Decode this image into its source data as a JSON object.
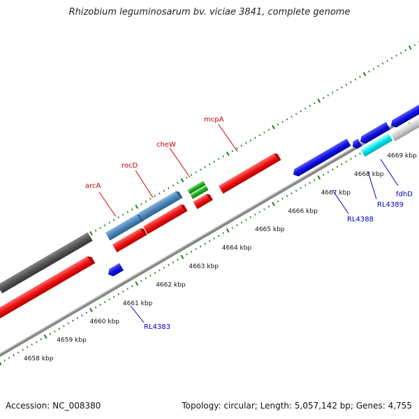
{
  "header": {
    "title": "Rhizobium leguminosarum bv. viciae 3841, complete genome"
  },
  "footer": {
    "accession": "Accession: NC_008380",
    "stats": "Topology: circular; Length: 5,057,142 bp; Genes: 4,755"
  },
  "colors": {
    "forward_cds": "#ee1111",
    "reverse_cds": "#1111dd",
    "blue_gene": "#4a86bb",
    "green_gene": "#22aa22",
    "cyan_gene": "#00e5f0",
    "dark_gene": "#555555",
    "light_gene": "#cccccc",
    "forward_label": "#cc0000",
    "reverse_label": "#0000bb",
    "tick": "#1a7a1a"
  },
  "scale": {
    "ticks": [
      {
        "kbp": 4658,
        "label": "4658 kbp"
      },
      {
        "kbp": 4659,
        "label": "4659 kbp"
      },
      {
        "kbp": 4660,
        "label": "4660 kbp"
      },
      {
        "kbp": 4661,
        "label": "4661 kbp"
      },
      {
        "kbp": 4662,
        "label": "4662 kbp"
      },
      {
        "kbp": 4663,
        "label": "4663 kbp"
      },
      {
        "kbp": 4664,
        "label": "4664 kbp"
      },
      {
        "kbp": 4665,
        "label": "4665 kbp"
      },
      {
        "kbp": 4666,
        "label": "4666 kbp"
      },
      {
        "kbp": 4667,
        "label": "4667 kbp"
      },
      {
        "kbp": 4668,
        "label": "4668 kbp"
      },
      {
        "kbp": 4669,
        "label": "4669 kbp"
      }
    ]
  },
  "gene_labels": [
    {
      "name": "arcA",
      "strand": "forward"
    },
    {
      "name": "rocD",
      "strand": "forward"
    },
    {
      "name": "cheW",
      "strand": "forward"
    },
    {
      "name": "mcpA",
      "strand": "forward"
    },
    {
      "name": "RL4383",
      "strand": "reverse"
    },
    {
      "name": "RL4388",
      "strand": "reverse"
    },
    {
      "name": "RL4389",
      "strand": "reverse"
    },
    {
      "name": "fdhD",
      "strand": "reverse"
    }
  ]
}
